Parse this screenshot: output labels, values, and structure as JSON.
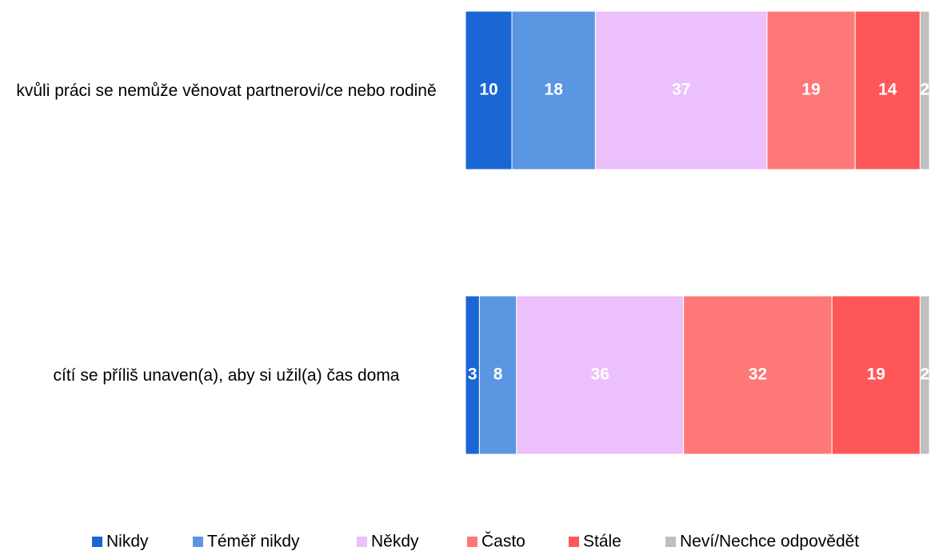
{
  "chart_data": {
    "type": "stacked-barh",
    "categories": [
      "kvůli práci se nemůže věnovat partnerovi/ce nebo rodině",
      "cítí se příliš unaven(a), aby si užil(a) čas doma"
    ],
    "series": [
      {
        "name": "Nikdy",
        "color": "#1a66d4",
        "values": [
          10,
          3
        ]
      },
      {
        "name": "Téměř nikdy",
        "color": "#5b96e2",
        "values": [
          18,
          8
        ]
      },
      {
        "name": "Někdy",
        "color": "#ecc0fa",
        "values": [
          37,
          36
        ]
      },
      {
        "name": "Často",
        "color": "#ff7878",
        "values": [
          19,
          32
        ]
      },
      {
        "name": "Stále",
        "color": "#ff5757",
        "values": [
          14,
          19
        ]
      },
      {
        "name": "Neví/Nechce odpovědět",
        "color": "#bfbfbf",
        "values": [
          2,
          2
        ]
      }
    ],
    "xlim": [
      0,
      100
    ],
    "legend": "bottom"
  }
}
